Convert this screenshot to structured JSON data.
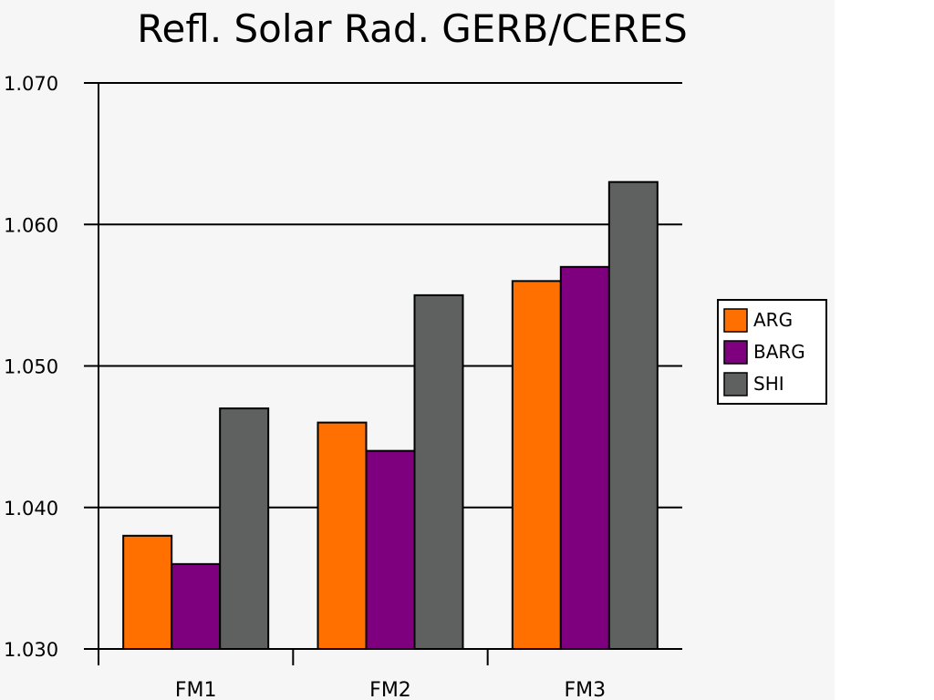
{
  "chart_data": {
    "type": "bar",
    "title": "Refl. Solar Rad. GERB/CERES",
    "xlabel": "",
    "ylabel": "",
    "categories": [
      "FM1",
      "FM2",
      "FM3"
    ],
    "series": [
      {
        "name": "ARG",
        "values": [
          1.038,
          1.046,
          1.056
        ]
      },
      {
        "name": "BARG",
        "values": [
          1.036,
          1.044,
          1.057
        ]
      },
      {
        "name": "SHI",
        "values": [
          1.047,
          1.055,
          1.063
        ]
      }
    ],
    "ylim": [
      1.03,
      1.07
    ],
    "yticks": [
      1.03,
      1.04,
      1.05,
      1.06,
      1.07
    ],
    "ytick_labels": [
      "1.030",
      "1.040",
      "1.050",
      "1.060",
      "1.070"
    ],
    "grid": true,
    "legend_position": "middle-right",
    "colors": {
      "ARG": "#ff7000",
      "BARG": "#7f007f",
      "SHI": "#5e615f"
    }
  }
}
